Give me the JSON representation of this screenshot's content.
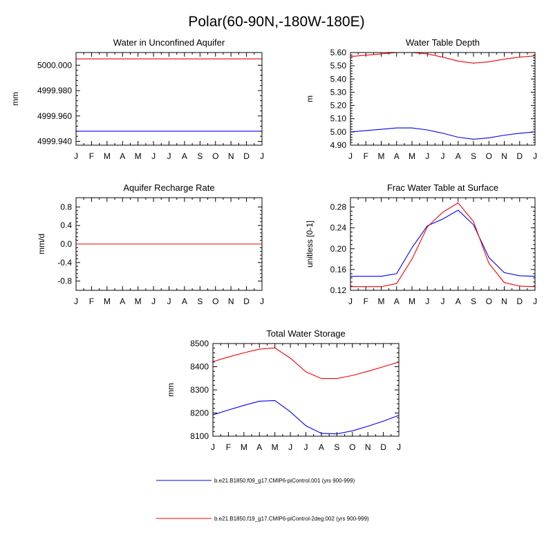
{
  "title": "Polar(60-90N,-180W-180E)",
  "months": [
    "J",
    "F",
    "M",
    "A",
    "M",
    "J",
    "J",
    "A",
    "S",
    "O",
    "N",
    "D",
    "J"
  ],
  "series_colors": [
    "#0000ee",
    "#ee0000"
  ],
  "legend": [
    {
      "label": "b.e21.B1850.f09_g17.CMIP6-piControl.001 (yrs 900-999)",
      "color": "#0000ee"
    },
    {
      "label": "b.e21.B1850.f19_g17.CMIP6-piControl-2deg.002 (yrs 900-999)",
      "color": "#ee0000"
    }
  ],
  "chart_data": [
    {
      "id": "unconfined",
      "type": "line",
      "title": "Water in Unconfined Aquifer",
      "ylabel": "mm",
      "ylim": [
        4999.937,
        5000.01
      ],
      "yticks": [
        4999.94,
        4999.96,
        4999.98,
        5000.0
      ],
      "ytick_labels": [
        "4999.940",
        "4999.960",
        "4999.980",
        "5000.000"
      ],
      "series": [
        {
          "name": "b.e21.B1850.f09_g17.CMIP6-piControl.001 (yrs 900-999)",
          "values": [
            4999.948,
            4999.948,
            4999.948,
            4999.948,
            4999.948,
            4999.948,
            4999.948,
            4999.948,
            4999.948,
            4999.948,
            4999.948,
            4999.948,
            4999.948
          ]
        },
        {
          "name": "b.e21.B1850.f19_g17.CMIP6-piControl-2deg.002 (yrs 900-999)",
          "values": [
            5000.005,
            5000.005,
            5000.005,
            5000.005,
            5000.005,
            5000.005,
            5000.005,
            5000.005,
            5000.005,
            5000.005,
            5000.005,
            5000.005,
            5000.005
          ]
        }
      ]
    },
    {
      "id": "wtd",
      "type": "line",
      "title": "Water Table Depth",
      "ylabel": "m",
      "ylim": [
        4.9,
        5.6
      ],
      "yticks": [
        4.9,
        5.0,
        5.1,
        5.2,
        5.3,
        5.4,
        5.5,
        5.6
      ],
      "ytick_labels": [
        "4.90",
        "5.00",
        "5.10",
        "5.20",
        "5.30",
        "5.40",
        "5.50",
        "5.60"
      ],
      "series": [
        {
          "name": "b.e21.B1850.f09_g17.CMIP6-piControl.001 (yrs 900-999)",
          "values": [
            5.0,
            5.01,
            5.02,
            5.03,
            5.03,
            5.015,
            4.99,
            4.96,
            4.945,
            4.955,
            4.975,
            4.99,
            5.0
          ]
        },
        {
          "name": "b.e21.B1850.f19_g17.CMIP6-piControl-2deg.002 (yrs 900-999)",
          "values": [
            5.57,
            5.58,
            5.59,
            5.6,
            5.6,
            5.59,
            5.565,
            5.535,
            5.52,
            5.53,
            5.55,
            5.565,
            5.575
          ]
        }
      ]
    },
    {
      "id": "recharge",
      "type": "line",
      "title": "Aquifer Recharge Rate",
      "ylabel": "mm/d",
      "ylim": [
        -1.0,
        1.0
      ],
      "yticks": [
        -0.8,
        -0.4,
        0.0,
        0.4,
        0.8
      ],
      "ytick_labels": [
        "-0.8",
        "-0.4",
        "0.0",
        "0.4",
        "0.8"
      ],
      "series": [
        {
          "name": "b.e21.B1850.f09_g17.CMIP6-piControl.001 (yrs 900-999)",
          "values": [
            0,
            0,
            0,
            0,
            0,
            0,
            0,
            0,
            0,
            0,
            0,
            0,
            0
          ]
        },
        {
          "name": "b.e21.B1850.f19_g17.CMIP6-piControl-2deg.002 (yrs 900-999)",
          "values": [
            0,
            0,
            0,
            0,
            0,
            0,
            0,
            0,
            0,
            0,
            0,
            0,
            0
          ]
        }
      ]
    },
    {
      "id": "frac",
      "type": "line",
      "title": "Frac Water Table at Surface",
      "ylabel": "unitless [0-1]",
      "ylim": [
        0.12,
        0.298
      ],
      "yticks": [
        0.12,
        0.16,
        0.2,
        0.24,
        0.28
      ],
      "ytick_labels": [
        "0.12",
        "0.16",
        "0.20",
        "0.24",
        "0.28"
      ],
      "series": [
        {
          "name": "b.e21.B1850.f09_g17.CMIP6-piControl.001 (yrs 900-999)",
          "values": [
            0.147,
            0.147,
            0.147,
            0.152,
            0.202,
            0.244,
            0.257,
            0.274,
            0.246,
            0.183,
            0.154,
            0.148,
            0.147
          ]
        },
        {
          "name": "b.e21.B1850.f19_g17.CMIP6-piControl-2deg.002 (yrs 900-999)",
          "values": [
            0.127,
            0.127,
            0.127,
            0.133,
            0.18,
            0.242,
            0.27,
            0.288,
            0.252,
            0.172,
            0.135,
            0.128,
            0.127
          ]
        }
      ]
    },
    {
      "id": "tws",
      "type": "line",
      "title": "Total Water Storage",
      "ylabel": "mm",
      "ylim": [
        8100,
        8500
      ],
      "yticks": [
        8100,
        8200,
        8300,
        8400,
        8500
      ],
      "ytick_labels": [
        "8100",
        "8200",
        "8300",
        "8400",
        "8500"
      ],
      "series": [
        {
          "name": "b.e21.B1850.f09_g17.CMIP6-piControl.001 (yrs 900-999)",
          "values": [
            8192,
            8213,
            8233,
            8251,
            8254,
            8205,
            8145,
            8112,
            8110,
            8123,
            8143,
            8165,
            8190
          ]
        },
        {
          "name": "b.e21.B1850.f19_g17.CMIP6-piControl-2deg.002 (yrs 900-999)",
          "values": [
            8422,
            8442,
            8460,
            8476,
            8481,
            8437,
            8378,
            8349,
            8349,
            8362,
            8380,
            8400,
            8420
          ]
        }
      ]
    }
  ]
}
